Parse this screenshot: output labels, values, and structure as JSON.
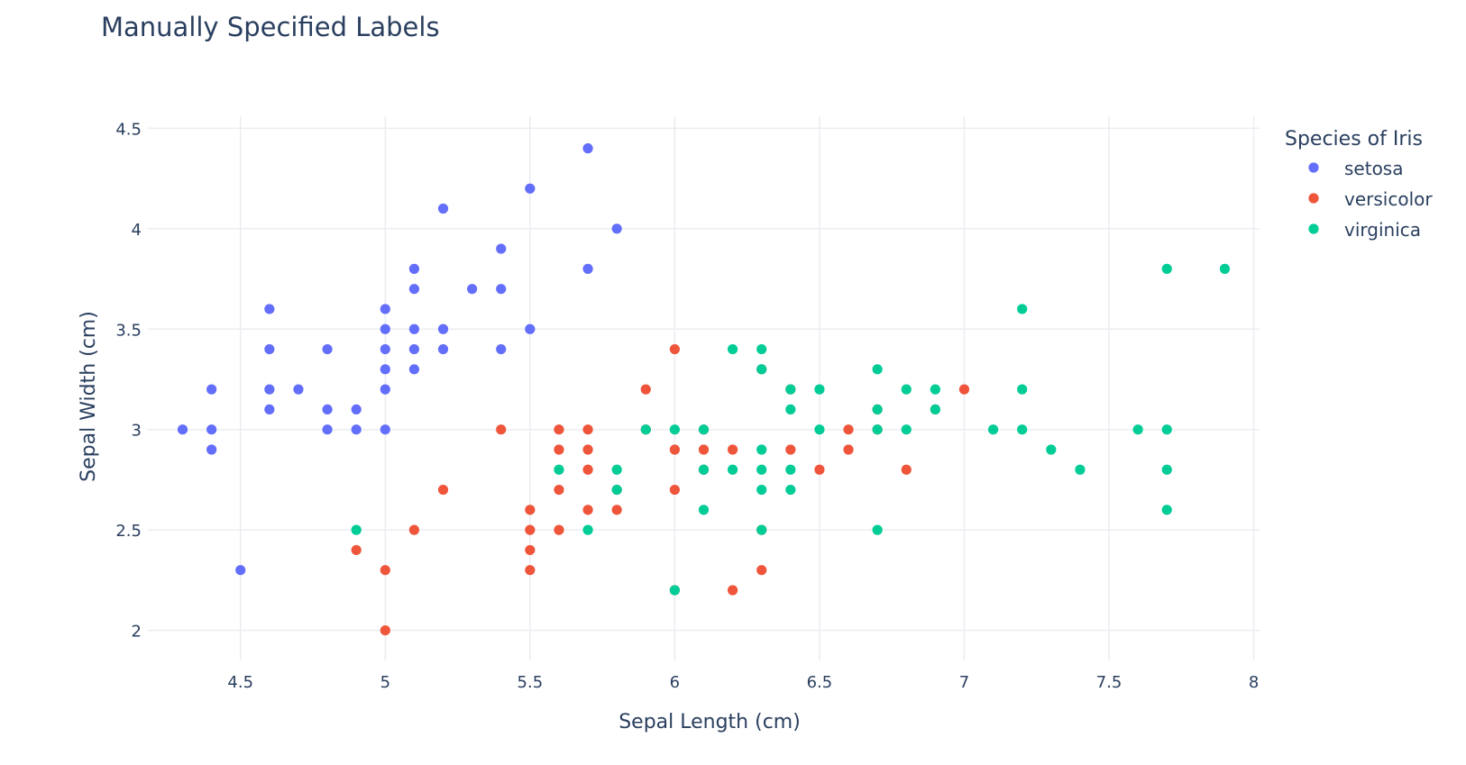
{
  "chart_data": {
    "type": "scatter",
    "title": "Manually Specified Labels",
    "xlabel": "Sepal Length (cm)",
    "ylabel": "Sepal Width (cm)",
    "xlim": [
      4.18,
      8.02
    ],
    "ylim": [
      1.85,
      4.56
    ],
    "x_ticks": [
      4.5,
      5,
      5.5,
      6,
      6.5,
      7,
      7.5,
      8
    ],
    "x_tick_labels": [
      "4.5",
      "5",
      "5.5",
      "6",
      "6.5",
      "7",
      "7.5",
      "8"
    ],
    "y_ticks": [
      2,
      2.5,
      3,
      3.5,
      4,
      4.5
    ],
    "y_tick_labels": [
      "2",
      "2.5",
      "3",
      "3.5",
      "4",
      "4.5"
    ],
    "grid": true,
    "legend": {
      "title": "Species of Iris",
      "placement": "top-right"
    },
    "series": [
      {
        "name": "setosa",
        "color": "#636efa",
        "points": [
          [
            4.3,
            3.0
          ],
          [
            4.4,
            3.2
          ],
          [
            4.4,
            3.0
          ],
          [
            4.4,
            2.9
          ],
          [
            4.5,
            2.3
          ],
          [
            4.6,
            3.6
          ],
          [
            4.6,
            3.4
          ],
          [
            4.6,
            3.2
          ],
          [
            4.6,
            3.1
          ],
          [
            4.7,
            3.2
          ],
          [
            4.8,
            3.4
          ],
          [
            4.8,
            3.1
          ],
          [
            4.8,
            3.0
          ],
          [
            4.9,
            3.1
          ],
          [
            4.9,
            3.0
          ],
          [
            5.0,
            3.6
          ],
          [
            5.0,
            3.5
          ],
          [
            5.0,
            3.4
          ],
          [
            5.0,
            3.3
          ],
          [
            5.0,
            3.2
          ],
          [
            5.0,
            3.0
          ],
          [
            5.1,
            3.8
          ],
          [
            5.1,
            3.7
          ],
          [
            5.1,
            3.5
          ],
          [
            5.1,
            3.4
          ],
          [
            5.1,
            3.3
          ],
          [
            5.2,
            4.1
          ],
          [
            5.2,
            3.5
          ],
          [
            5.2,
            3.4
          ],
          [
            5.3,
            3.7
          ],
          [
            5.4,
            3.9
          ],
          [
            5.4,
            3.7
          ],
          [
            5.4,
            3.4
          ],
          [
            5.5,
            4.2
          ],
          [
            5.5,
            3.5
          ],
          [
            5.7,
            4.4
          ],
          [
            5.7,
            3.8
          ],
          [
            5.8,
            4.0
          ]
        ]
      },
      {
        "name": "versicolor",
        "color": "#ef553b",
        "points": [
          [
            4.9,
            2.4
          ],
          [
            5.0,
            2.3
          ],
          [
            5.0,
            2.0
          ],
          [
            5.1,
            2.5
          ],
          [
            5.2,
            2.7
          ],
          [
            5.4,
            3.0
          ],
          [
            5.5,
            2.6
          ],
          [
            5.5,
            2.5
          ],
          [
            5.5,
            2.4
          ],
          [
            5.5,
            2.3
          ],
          [
            5.6,
            3.0
          ],
          [
            5.6,
            2.9
          ],
          [
            5.6,
            2.7
          ],
          [
            5.6,
            2.5
          ],
          [
            5.7,
            3.0
          ],
          [
            5.7,
            2.9
          ],
          [
            5.7,
            2.8
          ],
          [
            5.7,
            2.6
          ],
          [
            5.8,
            2.7
          ],
          [
            5.8,
            2.6
          ],
          [
            5.9,
            3.2
          ],
          [
            5.9,
            3.0
          ],
          [
            6.0,
            3.4
          ],
          [
            6.0,
            2.9
          ],
          [
            6.0,
            2.7
          ],
          [
            6.0,
            2.2
          ],
          [
            6.1,
            3.0
          ],
          [
            6.1,
            2.9
          ],
          [
            6.1,
            2.8
          ],
          [
            6.2,
            2.9
          ],
          [
            6.2,
            2.2
          ],
          [
            6.3,
            3.3
          ],
          [
            6.3,
            2.5
          ],
          [
            6.3,
            2.3
          ],
          [
            6.4,
            3.2
          ],
          [
            6.4,
            2.9
          ],
          [
            6.5,
            2.8
          ],
          [
            6.6,
            3.0
          ],
          [
            6.6,
            2.9
          ],
          [
            6.7,
            3.1
          ],
          [
            6.7,
            3.0
          ],
          [
            6.8,
            2.8
          ],
          [
            6.9,
            3.1
          ],
          [
            7.0,
            3.2
          ]
        ]
      },
      {
        "name": "virginica",
        "color": "#00cc96",
        "points": [
          [
            4.9,
            2.5
          ],
          [
            5.6,
            2.8
          ],
          [
            5.7,
            2.5
          ],
          [
            5.8,
            2.8
          ],
          [
            5.8,
            2.7
          ],
          [
            5.9,
            3.0
          ],
          [
            6.0,
            3.0
          ],
          [
            6.0,
            2.2
          ],
          [
            6.1,
            3.0
          ],
          [
            6.1,
            2.8
          ],
          [
            6.1,
            2.6
          ],
          [
            6.2,
            3.4
          ],
          [
            6.2,
            2.8
          ],
          [
            6.3,
            3.4
          ],
          [
            6.3,
            3.3
          ],
          [
            6.3,
            2.9
          ],
          [
            6.3,
            2.8
          ],
          [
            6.3,
            2.7
          ],
          [
            6.3,
            2.5
          ],
          [
            6.4,
            3.2
          ],
          [
            6.4,
            3.1
          ],
          [
            6.4,
            2.8
          ],
          [
            6.4,
            2.7
          ],
          [
            6.5,
            3.2
          ],
          [
            6.5,
            3.0
          ],
          [
            6.7,
            3.3
          ],
          [
            6.7,
            3.1
          ],
          [
            6.7,
            3.0
          ],
          [
            6.7,
            2.5
          ],
          [
            6.8,
            3.2
          ],
          [
            6.8,
            3.0
          ],
          [
            6.9,
            3.2
          ],
          [
            6.9,
            3.1
          ],
          [
            7.1,
            3.0
          ],
          [
            7.2,
            3.6
          ],
          [
            7.2,
            3.2
          ],
          [
            7.2,
            3.0
          ],
          [
            7.3,
            2.9
          ],
          [
            7.4,
            2.8
          ],
          [
            7.6,
            3.0
          ],
          [
            7.7,
            3.8
          ],
          [
            7.7,
            3.0
          ],
          [
            7.7,
            2.8
          ],
          [
            7.7,
            2.6
          ],
          [
            7.9,
            3.8
          ]
        ]
      }
    ]
  }
}
